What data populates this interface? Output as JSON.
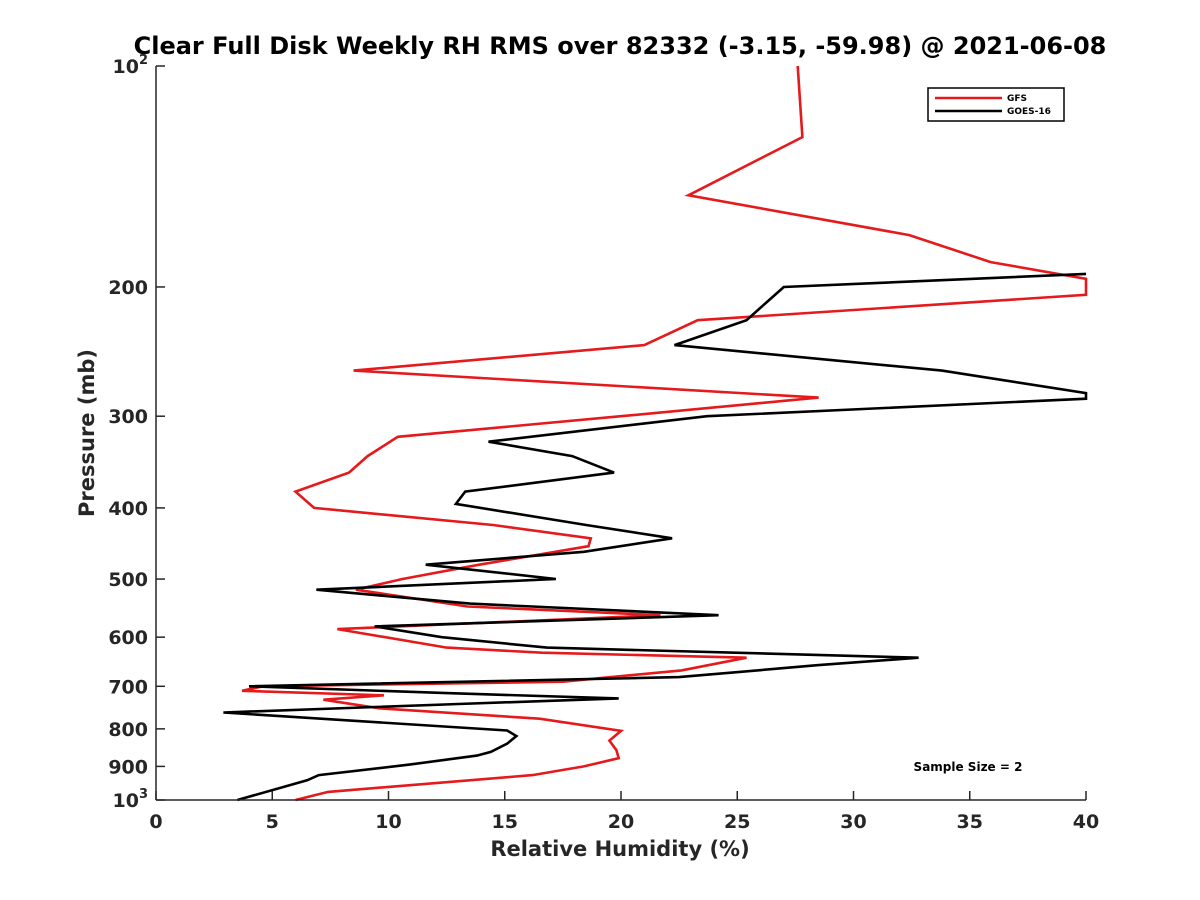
{
  "chart_data": {
    "type": "line",
    "title": "Clear Full Disk Weekly RH RMS over 82332 (-3.15, -59.98) @ 2021-06-08",
    "xlabel": "Relative Humidity (%)",
    "ylabel": "Pressure (mb)",
    "xlim": [
      0,
      40
    ],
    "ylim": [
      100,
      1000
    ],
    "y_scale": "log",
    "y_reversed": true,
    "grid": false,
    "legend_position": "top-right",
    "x_ticks": [
      "0",
      "5",
      "10",
      "15",
      "20",
      "25",
      "30",
      "35",
      "40"
    ],
    "y_ticks": [
      {
        "value": 100,
        "label": "10",
        "exp": "2"
      },
      {
        "value": 200,
        "label": "200",
        "exp": ""
      },
      {
        "value": 300,
        "label": "300",
        "exp": ""
      },
      {
        "value": 400,
        "label": "400",
        "exp": ""
      },
      {
        "value": 500,
        "label": "500",
        "exp": ""
      },
      {
        "value": 600,
        "label": "600",
        "exp": ""
      },
      {
        "value": 700,
        "label": "700",
        "exp": ""
      },
      {
        "value": 800,
        "label": "800",
        "exp": ""
      },
      {
        "value": 900,
        "label": "900",
        "exp": ""
      },
      {
        "value": 1000,
        "label": "10",
        "exp": "3"
      }
    ],
    "annotation": "Sample Size = 2",
    "series": [
      {
        "name": "GFS",
        "color": "#e41a1c",
        "points": [
          [
            27.6,
            100
          ],
          [
            27.8,
            125
          ],
          [
            22.9,
            150
          ],
          [
            32.4,
            170
          ],
          [
            35.9,
            185
          ],
          [
            40.0,
            195
          ],
          [
            40.0,
            205
          ],
          [
            23.3,
            222
          ],
          [
            21.0,
            240
          ],
          [
            8.5,
            260
          ],
          [
            28.5,
            283
          ],
          [
            20.0,
            300
          ],
          [
            10.4,
            320
          ],
          [
            9.1,
            340
          ],
          [
            8.3,
            358
          ],
          [
            6.0,
            380
          ],
          [
            6.8,
            400
          ],
          [
            14.5,
            422
          ],
          [
            18.7,
            440
          ],
          [
            18.6,
            451
          ],
          [
            13.9,
            478
          ],
          [
            10.6,
            500
          ],
          [
            8.6,
            517
          ],
          [
            13.4,
            545
          ],
          [
            21.7,
            560
          ],
          [
            7.8,
            585
          ],
          [
            12.5,
            620
          ],
          [
            16.6,
            630
          ],
          [
            25.4,
            640
          ],
          [
            22.6,
            666
          ],
          [
            17.5,
            690
          ],
          [
            4.6,
            700
          ],
          [
            3.7,
            710
          ],
          [
            9.8,
            720
          ],
          [
            7.2,
            730
          ],
          [
            9.6,
            750
          ],
          [
            16.5,
            775
          ],
          [
            20.0,
            805
          ],
          [
            19.5,
            830
          ],
          [
            19.8,
            855
          ],
          [
            19.9,
            877
          ],
          [
            18.4,
            900
          ],
          [
            16.2,
            925
          ],
          [
            7.4,
            975
          ],
          [
            6.0,
            1000
          ]
        ]
      },
      {
        "name": "GOES-16",
        "color": "#000000",
        "points": [
          [
            40.0,
            192
          ],
          [
            27.0,
            200
          ],
          [
            25.4,
            222
          ],
          [
            22.3,
            240
          ],
          [
            33.8,
            260
          ],
          [
            40.0,
            279
          ],
          [
            40.0,
            284
          ],
          [
            23.7,
            300
          ],
          [
            14.3,
            325
          ],
          [
            17.9,
            340
          ],
          [
            19.7,
            358
          ],
          [
            13.3,
            380
          ],
          [
            12.9,
            395
          ],
          [
            18.5,
            422
          ],
          [
            22.2,
            440
          ],
          [
            18.4,
            459
          ],
          [
            11.6,
            478
          ],
          [
            17.2,
            500
          ],
          [
            6.9,
            517
          ],
          [
            13.5,
            540
          ],
          [
            24.2,
            560
          ],
          [
            9.4,
            580
          ],
          [
            12.3,
            600
          ],
          [
            16.8,
            620
          ],
          [
            32.8,
            640
          ],
          [
            28.5,
            655
          ],
          [
            22.5,
            680
          ],
          [
            4.0,
            700
          ],
          [
            12.5,
            715
          ],
          [
            19.9,
            727
          ],
          [
            13.0,
            740
          ],
          [
            2.9,
            760
          ],
          [
            15.1,
            804
          ],
          [
            15.5,
            818
          ],
          [
            15.1,
            838
          ],
          [
            14.4,
            860
          ],
          [
            13.8,
            870
          ],
          [
            10.9,
            895
          ],
          [
            7.0,
            925
          ],
          [
            6.5,
            940
          ],
          [
            3.5,
            1000
          ]
        ]
      }
    ]
  }
}
